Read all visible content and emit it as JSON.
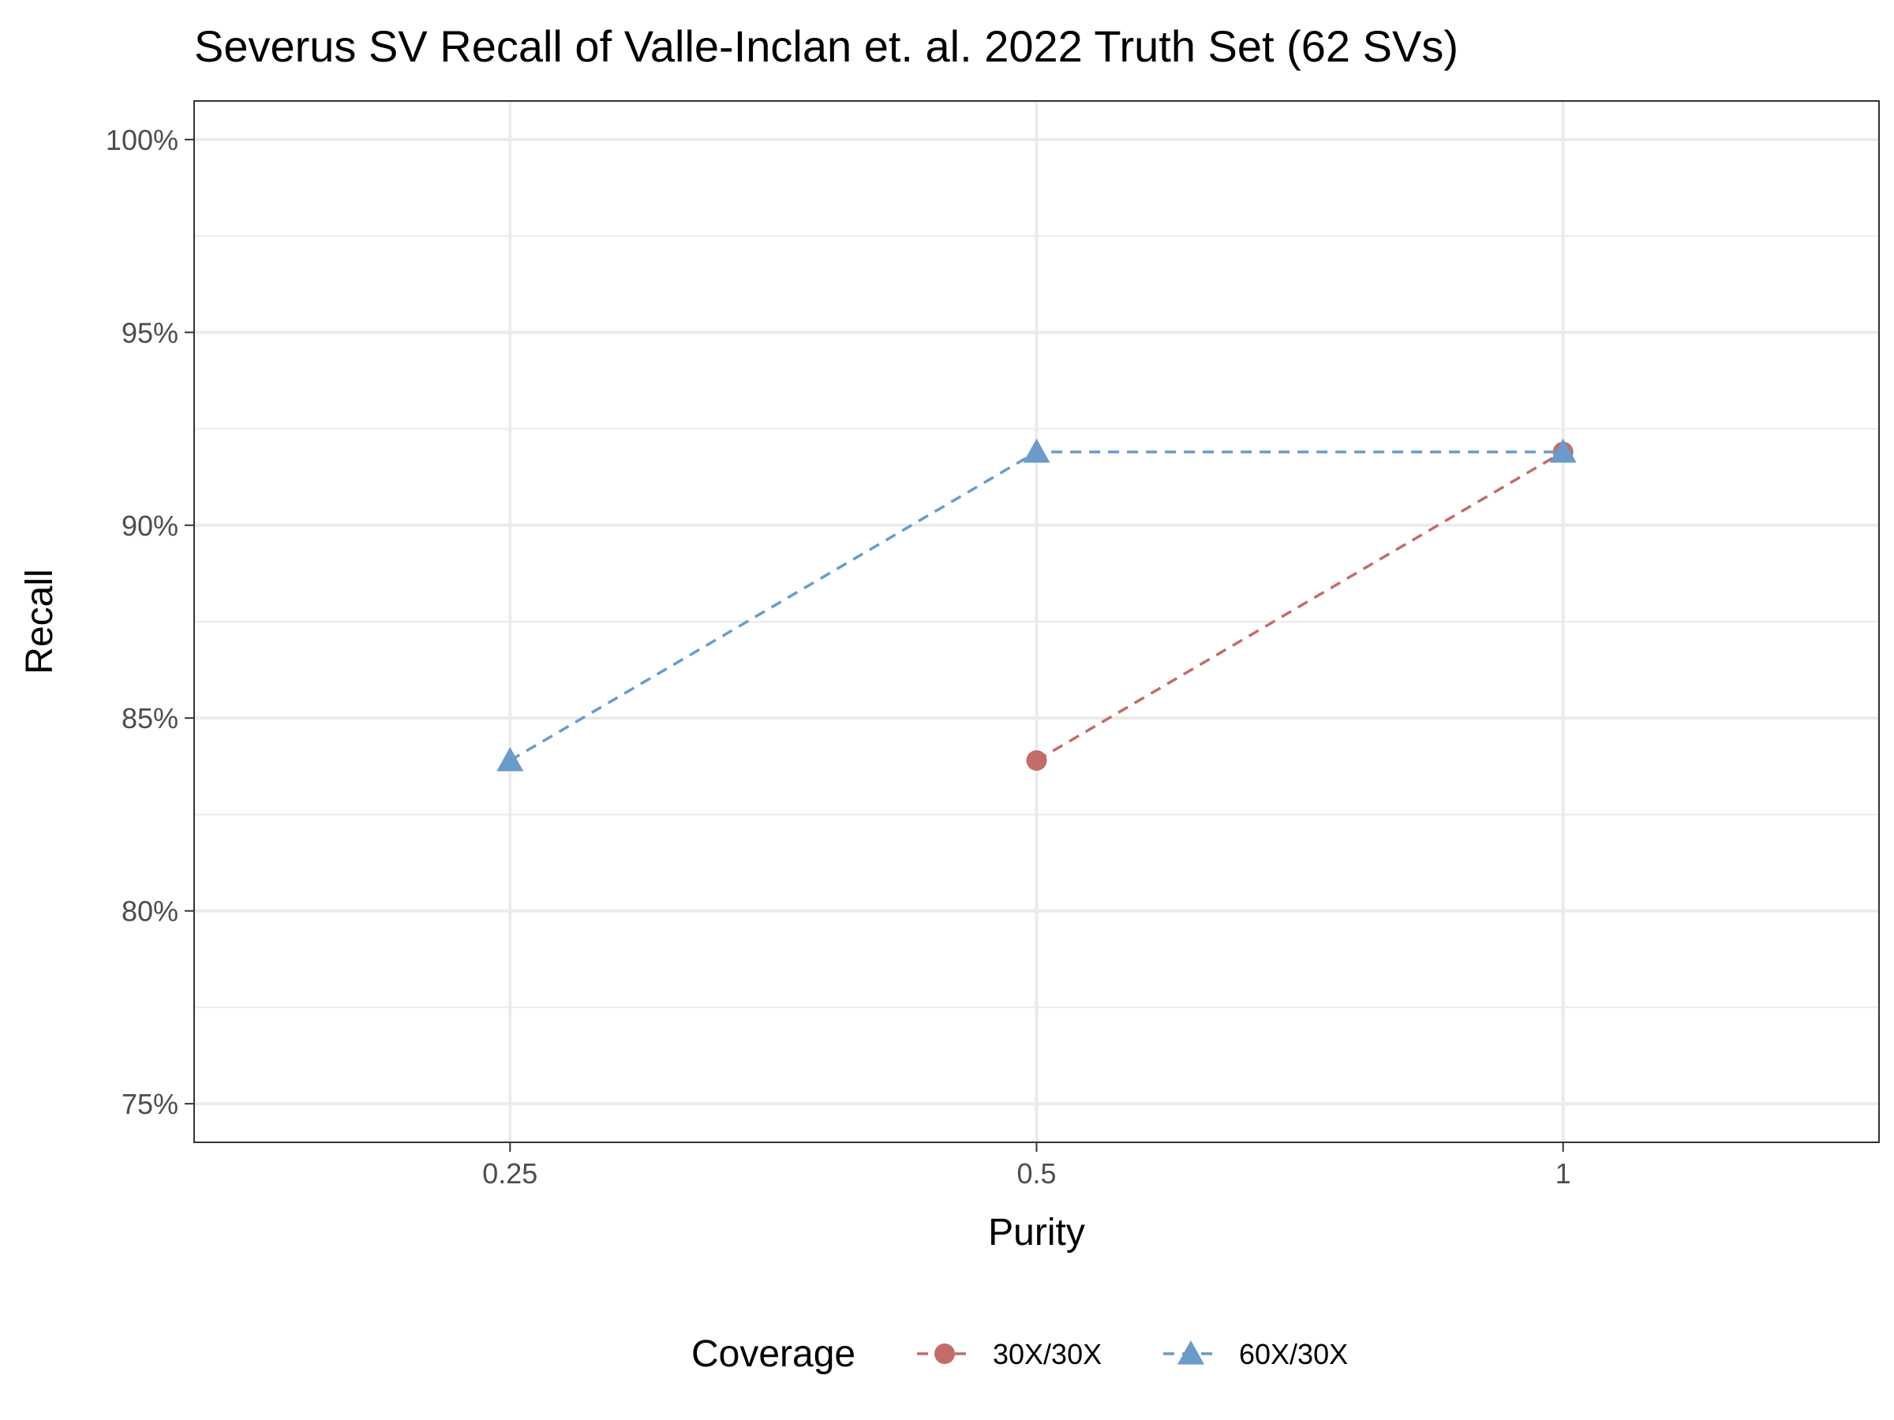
{
  "chart_data": {
    "type": "line",
    "title": "Severus SV Recall of Valle-Inclan et. al. 2022 Truth Set (62 SVs)",
    "xlabel": "Purity",
    "ylabel": "Recall",
    "x_scale": "categorical",
    "categories": [
      "0.25",
      "0.5",
      "1"
    ],
    "ylim": [
      74,
      101
    ],
    "yticks": [
      75,
      80,
      85,
      90,
      95,
      100
    ],
    "ytick_labels": [
      "75%",
      "80%",
      "85%",
      "90%",
      "95%",
      "100%"
    ],
    "grid": true,
    "legend": {
      "title": "Coverage",
      "position": "bottom"
    },
    "series": [
      {
        "name": "30X/30X",
        "color": "#c46c6a",
        "marker": "circle",
        "line_style": "dashed",
        "x": [
          "0.5",
          "1"
        ],
        "y": [
          83.9,
          91.9
        ]
      },
      {
        "name": "60X/30X",
        "color": "#6b9bcb",
        "marker": "triangle",
        "line_style": "dashed",
        "x": [
          "0.25",
          "0.5",
          "1"
        ],
        "y": [
          83.9,
          91.9,
          91.9
        ]
      }
    ]
  }
}
